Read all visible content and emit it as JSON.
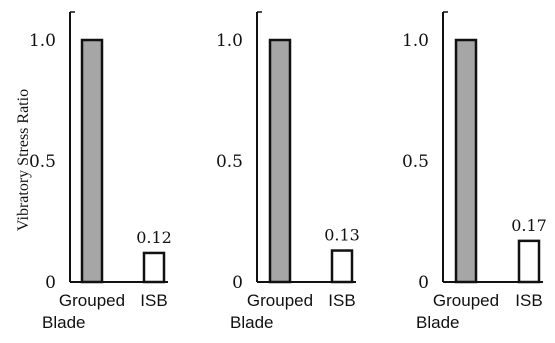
{
  "chart_data": [
    {
      "type": "bar",
      "ylabel": "Vibratory Stress Ratio",
      "ylim": [
        0,
        1.0
      ],
      "yticks": [
        "0",
        "0.5",
        "1.0"
      ],
      "categories": [
        [
          "Grouped",
          "Blade"
        ],
        [
          "ISB"
        ]
      ],
      "values": [
        1.0,
        0.12
      ],
      "data_labels": [
        "",
        "0.12"
      ],
      "colors": [
        "#a6a6a6",
        "#ffffff"
      ]
    },
    {
      "type": "bar",
      "ylim": [
        0,
        1.0
      ],
      "yticks": [
        "0",
        "0.5",
        "1.0"
      ],
      "categories": [
        [
          "Grouped",
          "Blade"
        ],
        [
          "ISB"
        ]
      ],
      "values": [
        1.0,
        0.13
      ],
      "data_labels": [
        "",
        "0.13"
      ],
      "colors": [
        "#a6a6a6",
        "#ffffff"
      ]
    },
    {
      "type": "bar",
      "ylim": [
        0,
        1.0
      ],
      "yticks": [
        "0",
        "0.5",
        "1.0"
      ],
      "categories": [
        [
          "Grouped",
          "Blade"
        ],
        [
          "ISB"
        ]
      ],
      "values": [
        1.0,
        0.17
      ],
      "data_labels": [
        "",
        "0.17"
      ],
      "colors": [
        "#a6a6a6",
        "#ffffff"
      ]
    }
  ]
}
